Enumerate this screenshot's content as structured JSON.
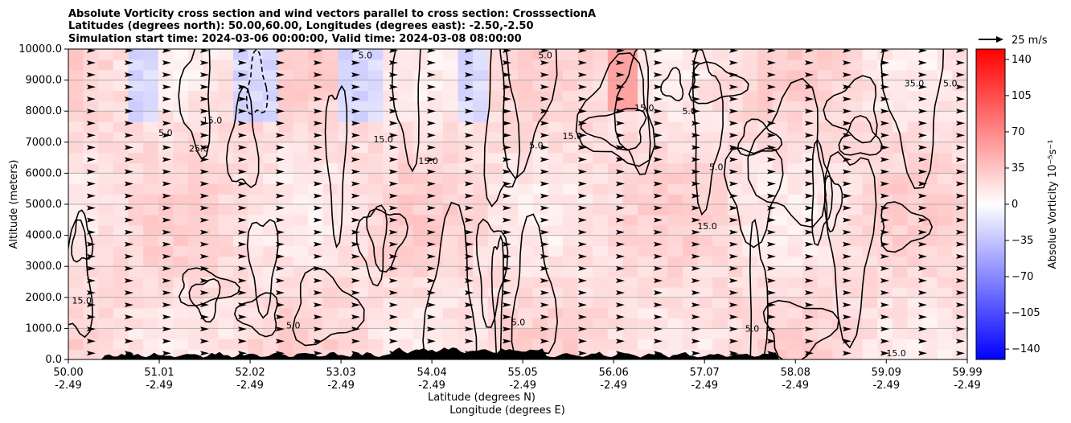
{
  "chart_data": {
    "type": "heatmap",
    "title_lines": [
      "Absolute Vorticity cross section and wind vectors parallel to cross section: CrosssectionA",
      "Latitudes (degrees north): 50.00,60.00, Longitudes (degrees east): -2.50,-2.50",
      "Simulation start time: 2024-03-06 00:00:00, Valid time: 2024-03-08 08:00:00"
    ],
    "xlabel_lines": [
      "Latitude (degrees N)",
      "Longitude (degrees E)"
    ],
    "ylabel": "Altitude (meters)",
    "xlim": [
      50.0,
      59.99
    ],
    "ylim": [
      0,
      10000
    ],
    "x_ticks": [
      {
        "lat": "50.00",
        "lon": "-2.49",
        "value": 50.0
      },
      {
        "lat": "51.01",
        "lon": "-2.49",
        "value": 51.01
      },
      {
        "lat": "52.02",
        "lon": "-2.49",
        "value": 52.02
      },
      {
        "lat": "53.03",
        "lon": "-2.49",
        "value": 53.03
      },
      {
        "lat": "54.04",
        "lon": "-2.49",
        "value": 54.04
      },
      {
        "lat": "55.05",
        "lon": "-2.49",
        "value": 55.05
      },
      {
        "lat": "56.06",
        "lon": "-2.49",
        "value": 56.06
      },
      {
        "lat": "57.07",
        "lon": "-2.49",
        "value": 57.07
      },
      {
        "lat": "58.08",
        "lon": "-2.49",
        "value": 58.08
      },
      {
        "lat": "59.09",
        "lon": "-2.49",
        "value": 59.09
      },
      {
        "lat": "59.99",
        "lon": "-2.49",
        "value": 59.99
      }
    ],
    "y_ticks": [
      {
        "label": "0.0",
        "value": 0
      },
      {
        "label": "1000.0",
        "value": 1000
      },
      {
        "label": "2000.0",
        "value": 2000
      },
      {
        "label": "3000.0",
        "value": 3000
      },
      {
        "label": "4000.0",
        "value": 4000
      },
      {
        "label": "5000.0",
        "value": 5000
      },
      {
        "label": "6000.0",
        "value": 6000
      },
      {
        "label": "7000.0",
        "value": 7000
      },
      {
        "label": "8000.0",
        "value": 8000
      },
      {
        "label": "9000.0",
        "value": 9000
      },
      {
        "label": "10000.0",
        "value": 10000
      }
    ],
    "grid": "horizontal",
    "colorbar": {
      "label": "Absolue Vorticity 10⁻⁵s⁻¹",
      "range": [
        -150,
        150
      ],
      "ticks": [
        "140",
        "105",
        "70",
        "35",
        "0",
        "−35",
        "−70",
        "−105",
        "−140"
      ],
      "tick_values": [
        140,
        105,
        70,
        35,
        0,
        -35,
        -70,
        -105,
        -140
      ],
      "colormap": "bwr",
      "low_color": "#0000ff",
      "mid_color": "#ffffff",
      "high_color": "#ff0000"
    },
    "quiver_key": {
      "label": "25 m/s",
      "value": 25
    },
    "wind_vectors": {
      "direction": "parallel to cross section, toward increasing latitude",
      "typical_speed": 12
    },
    "contour_levels": [
      5.0,
      15.0,
      25.0,
      35.0
    ],
    "contour_labels": [
      {
        "text": "15.0",
        "x": 50.15,
        "y": 1800
      },
      {
        "text": "5.0",
        "x": 51.08,
        "y": 7200
      },
      {
        "text": "15.0",
        "x": 51.6,
        "y": 7600
      },
      {
        "text": "25.0",
        "x": 51.45,
        "y": 6700
      },
      {
        "text": "15.0",
        "x": 53.5,
        "y": 7000
      },
      {
        "text": "5.0",
        "x": 55.2,
        "y": 6800
      },
      {
        "text": "15.0",
        "x": 54.0,
        "y": 6300
      },
      {
        "text": "15.0",
        "x": 55.6,
        "y": 7100
      },
      {
        "text": "5.0",
        "x": 57.2,
        "y": 6100
      },
      {
        "text": "15.0",
        "x": 56.4,
        "y": 8000
      },
      {
        "text": "5.0",
        "x": 56.9,
        "y": 7900
      },
      {
        "text": "5.0",
        "x": 53.3,
        "y": 9700
      },
      {
        "text": "5.0",
        "x": 55.3,
        "y": 9700
      },
      {
        "text": "35.0",
        "x": 59.4,
        "y": 8800
      },
      {
        "text": "5.0",
        "x": 59.8,
        "y": 8800
      },
      {
        "text": "15.0",
        "x": 57.1,
        "y": 4200
      },
      {
        "text": "5.0",
        "x": 52.5,
        "y": 1000
      },
      {
        "text": "5.0",
        "x": 55.0,
        "y": 1100
      },
      {
        "text": "5.0",
        "x": 57.6,
        "y": 900
      },
      {
        "text": "15.0",
        "x": 59.2,
        "y": 100
      }
    ],
    "terrain_color": "#000000"
  }
}
